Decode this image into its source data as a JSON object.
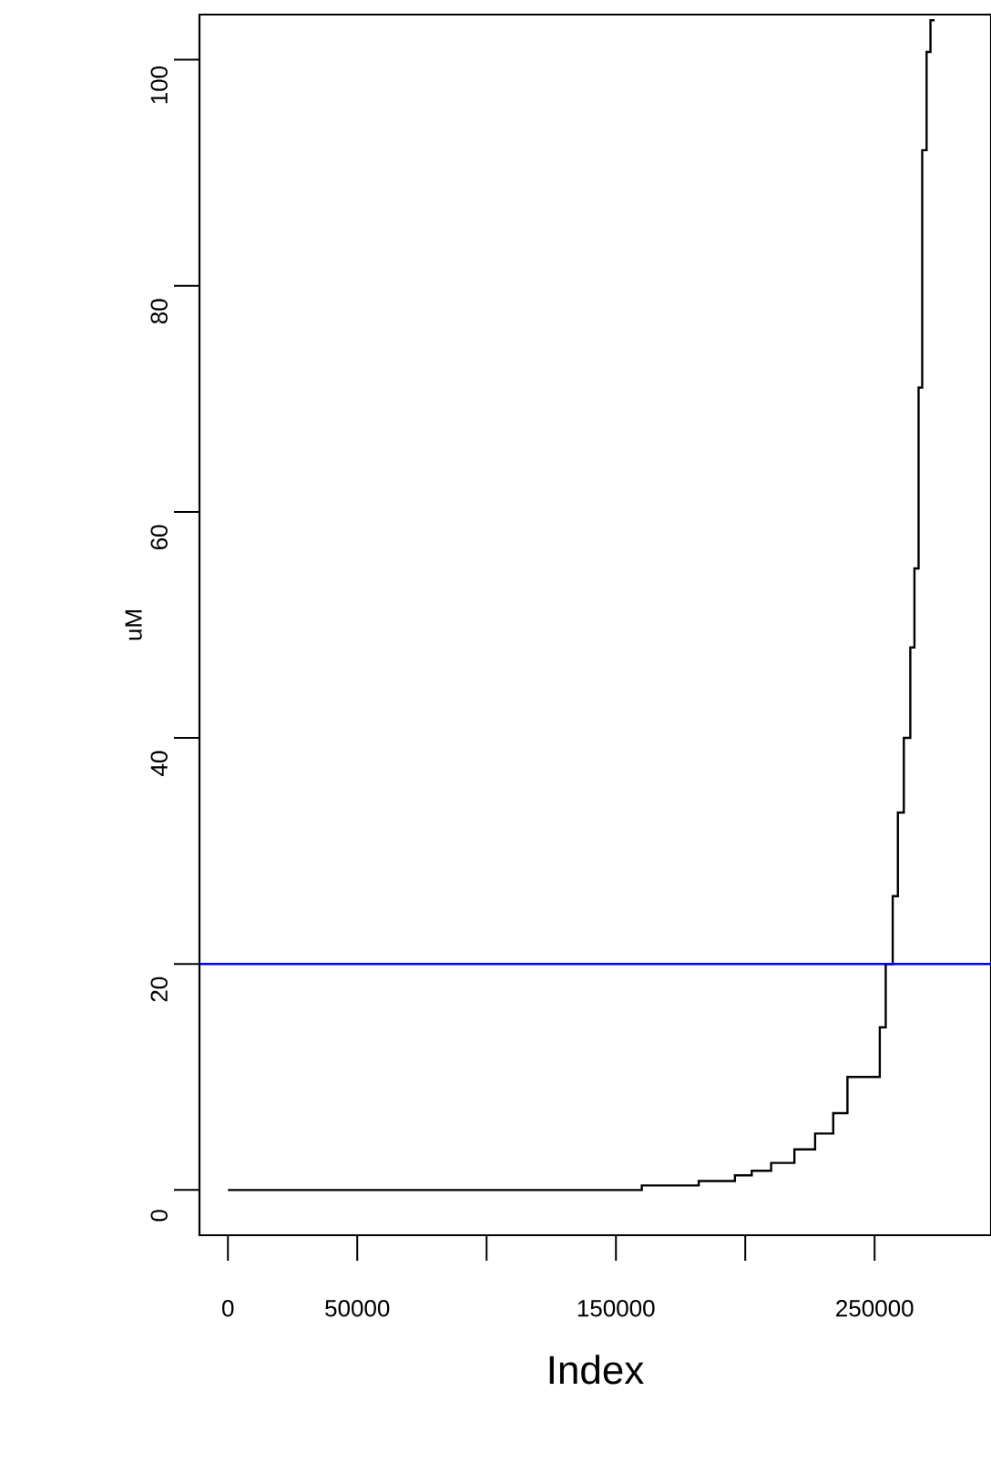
{
  "chart_data": {
    "type": "step",
    "xlabel": "Index",
    "ylabel": "uM",
    "xlim": [
      -11000,
      295000
    ],
    "ylim": [
      -4,
      104
    ],
    "xticks": [
      0,
      50000,
      {
        "value": 100000,
        "label": null
      },
      150000,
      {
        "value": 200000,
        "label": null
      },
      250000
    ],
    "yticks": [
      0,
      20,
      40,
      60,
      80,
      100
    ],
    "series": [
      {
        "color": "#000000",
        "x": [
          0,
          160000,
          182000,
          196000,
          202500,
          210000,
          219000,
          227000,
          234000,
          239500,
          252000,
          254300,
          257000,
          259000,
          261300,
          263800,
          265400,
          267000,
          268400,
          270100,
          271600,
          273200
        ],
        "values": [
          0,
          0.4,
          0.8,
          1.3,
          1.7,
          2.4,
          3.6,
          5.0,
          6.8,
          10,
          14.4,
          20,
          26,
          33.4,
          40,
          48,
          55,
          71,
          92,
          100.7,
          103.5,
          103.5
        ]
      }
    ],
    "ref_lines": [
      {
        "axis": "y",
        "value": 20,
        "color": "#0000ff"
      }
    ]
  }
}
